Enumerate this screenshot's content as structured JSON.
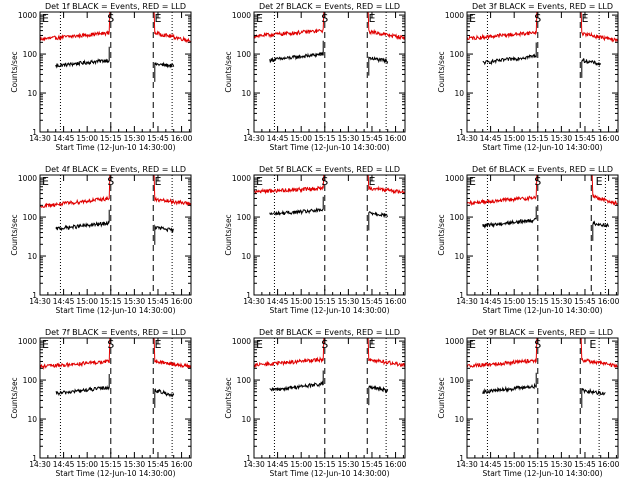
{
  "figure": {
    "x_ticks": [
      "14:30",
      "14:45",
      "15:00",
      "15:15",
      "15:30",
      "15:45",
      "16:00"
    ],
    "y_ticks": [
      "1",
      "10",
      "100",
      "1000"
    ],
    "ylabel": "Counts/sec",
    "xlabel": "Start Time (12-Jun-10 14:30:00)",
    "colors": {
      "events": "#000000",
      "lld": "#e00000",
      "frame": "#000000"
    }
  },
  "chart_data": [
    {
      "type": "line",
      "title": "Det 1f BLACK = Events, RED = LLD",
      "xlabel": "Start Time (12-Jun-10 14:30:00)",
      "ylabel": "Counts/sec",
      "y_scale": "log",
      "ylim": [
        1,
        1200
      ],
      "xlim_min": [
        0,
        96
      ],
      "markers": [
        {
          "label": "E",
          "x": 0
        },
        {
          "label": "S",
          "x": 45
        },
        {
          "label": "E",
          "x": 75
        }
      ],
      "vlines_dashed": [
        45,
        72
      ],
      "vlines_dotted": [
        13,
        84
      ],
      "series": [
        {
          "name": "Events",
          "segments": [
            {
              "x": [
                10,
                44
              ],
              "y": [
                50,
                70
              ]
            },
            {
              "x": [
                73,
                85
              ],
              "y": [
                55,
                50
              ]
            }
          ]
        },
        {
          "name": "LLD",
          "segments": [
            {
              "x": [
                0,
                44
              ],
              "y": [
                240,
                350
              ]
            },
            {
              "x": [
                73,
                96
              ],
              "y": [
                350,
                220
              ]
            }
          ]
        }
      ]
    },
    {
      "type": "line",
      "title": "Det 2f BLACK = Events, RED = LLD",
      "xlabel": "Start Time (12-Jun-10 14:30:00)",
      "ylabel": "Counts/sec",
      "y_scale": "log",
      "ylim": [
        1,
        1200
      ],
      "xlim_min": [
        0,
        96
      ],
      "markers": [
        {
          "label": "E",
          "x": 0
        },
        {
          "label": "S",
          "x": 45
        },
        {
          "label": "E",
          "x": 75
        }
      ],
      "vlines_dashed": [
        45,
        72
      ],
      "vlines_dotted": [
        13,
        84
      ],
      "series": [
        {
          "name": "Events",
          "segments": [
            {
              "x": [
                10,
                44
              ],
              "y": [
                70,
                100
              ]
            },
            {
              "x": [
                73,
                85
              ],
              "y": [
                80,
                65
              ]
            }
          ]
        },
        {
          "name": "LLD",
          "segments": [
            {
              "x": [
                0,
                44
              ],
              "y": [
                290,
                400
              ]
            },
            {
              "x": [
                73,
                96
              ],
              "y": [
                380,
                260
              ]
            }
          ]
        }
      ]
    },
    {
      "type": "line",
      "title": "Det 3f BLACK = Events, RED = LLD",
      "xlabel": "Start Time (12-Jun-10 14:30:00)",
      "ylabel": "Counts/sec",
      "y_scale": "log",
      "ylim": [
        1,
        1200
      ],
      "xlim_min": [
        0,
        96
      ],
      "markers": [
        {
          "label": "E",
          "x": 0
        },
        {
          "label": "S",
          "x": 45
        },
        {
          "label": "E",
          "x": 75
        }
      ],
      "vlines_dashed": [
        45,
        72
      ],
      "vlines_dotted": [
        13,
        84
      ],
      "series": [
        {
          "name": "Events",
          "segments": [
            {
              "x": [
                10,
                44
              ],
              "y": [
                60,
                90
              ]
            },
            {
              "x": [
                73,
                85
              ],
              "y": [
                70,
                55
              ]
            }
          ]
        },
        {
          "name": "LLD",
          "segments": [
            {
              "x": [
                0,
                44
              ],
              "y": [
                250,
                360
              ]
            },
            {
              "x": [
                73,
                96
              ],
              "y": [
                340,
                220
              ]
            }
          ]
        }
      ]
    },
    {
      "type": "line",
      "title": "Det 4f BLACK = Events, RED = LLD",
      "xlabel": "Start Time (12-Jun-10 14:30:00)",
      "ylabel": "Counts/sec",
      "y_scale": "log",
      "ylim": [
        1,
        1200
      ],
      "xlim_min": [
        0,
        96
      ],
      "markers": [
        {
          "label": "E",
          "x": 0
        },
        {
          "label": "S",
          "x": 45
        },
        {
          "label": "E",
          "x": 75
        }
      ],
      "vlines_dashed": [
        45,
        72
      ],
      "vlines_dotted": [
        13,
        84
      ],
      "series": [
        {
          "name": "Events",
          "segments": [
            {
              "x": [
                10,
                44
              ],
              "y": [
                50,
                70
              ]
            },
            {
              "x": [
                73,
                85
              ],
              "y": [
                55,
                45
              ]
            }
          ]
        },
        {
          "name": "LLD",
          "segments": [
            {
              "x": [
                0,
                44
              ],
              "y": [
                190,
                300
              ]
            },
            {
              "x": [
                73,
                96
              ],
              "y": [
                280,
                220
              ]
            }
          ]
        }
      ]
    },
    {
      "type": "line",
      "title": "Det 5f BLACK = Events, RED = LLD",
      "xlabel": "Start Time (12-Jun-10 14:30:00)",
      "ylabel": "Counts/sec",
      "y_scale": "log",
      "ylim": [
        1,
        1200
      ],
      "xlim_min": [
        0,
        96
      ],
      "markers": [
        {
          "label": "E",
          "x": 0
        },
        {
          "label": "S",
          "x": 45
        },
        {
          "label": "E",
          "x": 75
        }
      ],
      "vlines_dashed": [
        45,
        72
      ],
      "vlines_dotted": [
        13,
        84
      ],
      "series": [
        {
          "name": "Events",
          "segments": [
            {
              "x": [
                10,
                44
              ],
              "y": [
                120,
                150
              ]
            },
            {
              "x": [
                73,
                85
              ],
              "y": [
                130,
                110
              ]
            }
          ]
        },
        {
          "name": "LLD",
          "segments": [
            {
              "x": [
                0,
                44
              ],
              "y": [
                450,
                550
              ]
            },
            {
              "x": [
                73,
                96
              ],
              "y": [
                560,
                430
              ]
            }
          ]
        }
      ]
    },
    {
      "type": "line",
      "title": "Det 6f BLACK = Events, RED = LLD",
      "xlabel": "Start Time (12-Jun-10 14:30:00)",
      "ylabel": "Counts/sec",
      "y_scale": "log",
      "ylim": [
        1,
        1200
      ],
      "xlim_min": [
        0,
        96
      ],
      "markers": [
        {
          "label": "E",
          "x": 0
        },
        {
          "label": "S",
          "x": 45
        },
        {
          "label": "E",
          "x": 84
        }
      ],
      "vlines_dashed": [
        45,
        79
      ],
      "vlines_dotted": [
        13,
        88
      ],
      "series": [
        {
          "name": "Events",
          "segments": [
            {
              "x": [
                10,
                44
              ],
              "y": [
                60,
                85
              ]
            },
            {
              "x": [
                80,
                90
              ],
              "y": [
                70,
                60
              ]
            }
          ]
        },
        {
          "name": "LLD",
          "segments": [
            {
              "x": [
                0,
                44
              ],
              "y": [
                230,
                320
              ]
            },
            {
              "x": [
                80,
                96
              ],
              "y": [
                340,
                220
              ]
            }
          ]
        }
      ]
    },
    {
      "type": "line",
      "title": "Det 7f BLACK = Events, RED = LLD",
      "xlabel": "Start Time (12-Jun-10 14:30:00)",
      "ylabel": "Counts/sec",
      "y_scale": "log",
      "ylim": [
        1,
        1200
      ],
      "xlim_min": [
        0,
        96
      ],
      "markers": [
        {
          "label": "E",
          "x": 0
        },
        {
          "label": "S",
          "x": 45
        },
        {
          "label": "E",
          "x": 75
        }
      ],
      "vlines_dashed": [
        45,
        72
      ],
      "vlines_dotted": [
        13,
        84
      ],
      "series": [
        {
          "name": "Events",
          "segments": [
            {
              "x": [
                10,
                44
              ],
              "y": [
                45,
                65
              ]
            },
            {
              "x": [
                73,
                85
              ],
              "y": [
                55,
                40
              ]
            }
          ]
        },
        {
          "name": "LLD",
          "segments": [
            {
              "x": [
                0,
                44
              ],
              "y": [
                220,
                300
              ]
            },
            {
              "x": [
                73,
                96
              ],
              "y": [
                300,
                220
              ]
            }
          ]
        }
      ]
    },
    {
      "type": "line",
      "title": "Det 8f BLACK = Events, RED = LLD",
      "xlabel": "Start Time (12-Jun-10 14:30:00)",
      "ylabel": "Counts/sec",
      "y_scale": "log",
      "ylim": [
        1,
        1200
      ],
      "xlim_min": [
        0,
        96
      ],
      "markers": [
        {
          "label": "E",
          "x": 0
        },
        {
          "label": "S",
          "x": 45
        },
        {
          "label": "E",
          "x": 75
        }
      ],
      "vlines_dashed": [
        45,
        72
      ],
      "vlines_dotted": [
        13,
        84
      ],
      "series": [
        {
          "name": "Events",
          "segments": [
            {
              "x": [
                10,
                44
              ],
              "y": [
                55,
                80
              ]
            },
            {
              "x": [
                73,
                85
              ],
              "y": [
                65,
                55
              ]
            }
          ]
        },
        {
          "name": "LLD",
          "segments": [
            {
              "x": [
                0,
                44
              ],
              "y": [
                240,
                340
              ]
            },
            {
              "x": [
                73,
                96
              ],
              "y": [
                340,
                240
              ]
            }
          ]
        }
      ]
    },
    {
      "type": "line",
      "title": "Det 9f BLACK = Events, RED = LLD",
      "xlabel": "Start Time (12-Jun-10 14:30:00)",
      "ylabel": "Counts/sec",
      "y_scale": "log",
      "ylim": [
        1,
        1200
      ],
      "xlim_min": [
        0,
        96
      ],
      "markers": [
        {
          "label": "E",
          "x": 0
        },
        {
          "label": "S",
          "x": 45
        },
        {
          "label": "E",
          "x": 80
        }
      ],
      "vlines_dashed": [
        45,
        72
      ],
      "vlines_dotted": [
        13,
        84
      ],
      "series": [
        {
          "name": "Events",
          "segments": [
            {
              "x": [
                10,
                44
              ],
              "y": [
                50,
                70
              ]
            },
            {
              "x": [
                73,
                88
              ],
              "y": [
                55,
                45
              ]
            }
          ]
        },
        {
          "name": "LLD",
          "segments": [
            {
              "x": [
                0,
                44
              ],
              "y": [
                230,
                320
              ]
            },
            {
              "x": [
                73,
                96
              ],
              "y": [
                330,
                230
              ]
            }
          ]
        }
      ]
    }
  ]
}
